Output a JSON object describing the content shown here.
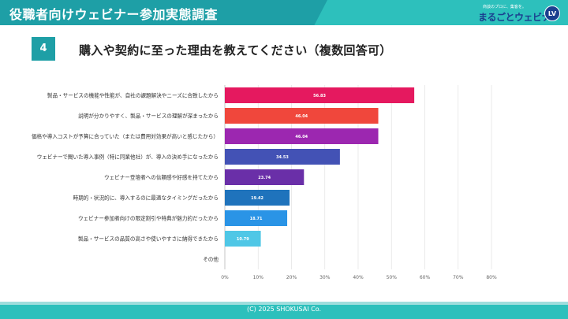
{
  "header": {
    "title": "役職者向けウェビナー参加実態調査"
  },
  "logo": {
    "tagline": "商談のプロに、集客を。",
    "name": "まるごとウェビナー",
    "badge": "LV"
  },
  "question": {
    "number": "4",
    "text": "購入や契約に至った理由を教えてください（複数回答可）"
  },
  "chart_data": {
    "type": "bar",
    "orientation": "horizontal",
    "categories": [
      "製品・サービスの機能や性能が、自社の課題解決やニーズに合致したから",
      "説明が分かりやすく、製品・サービスの理解が深まったから",
      "価格や導入コストが予算に合っていた（または費用対効果が高いと感じたから）",
      "ウェビナーで聞いた導入事例（特に同業他社）が、導入の決め手になったから",
      "ウェビナー登壇者への信頼感や好感を持てたから",
      "時期的・状況的に、導入するのに最適なタイミングだったから",
      "ウェビナー参加者向けの限定割引や特典が魅力的だったから",
      "製品・サービスの品質の高さや使いやすさに納得できたから",
      "その他"
    ],
    "values": [
      56.83,
      46.04,
      46.04,
      34.53,
      23.74,
      19.42,
      18.71,
      10.79,
      0
    ],
    "labels": [
      "56.83",
      "46.04",
      "46.04",
      "34.53",
      "23.74",
      "19.42",
      "18.71",
      "10.79",
      ""
    ],
    "colors": [
      "#e5195f",
      "#f0473c",
      "#9c27b0",
      "#4352b5",
      "#6a2fa8",
      "#1f73bc",
      "#2a94e6",
      "#4fc7e6",
      "#cccccc"
    ],
    "xlim": [
      0,
      80
    ],
    "xticks": [
      "0%",
      "10%",
      "20%",
      "30%",
      "40%",
      "50%",
      "60%",
      "70%",
      "80%"
    ],
    "grid": true
  },
  "footer": {
    "copyright": "(C) 2025 SHOKUSAI Co."
  }
}
